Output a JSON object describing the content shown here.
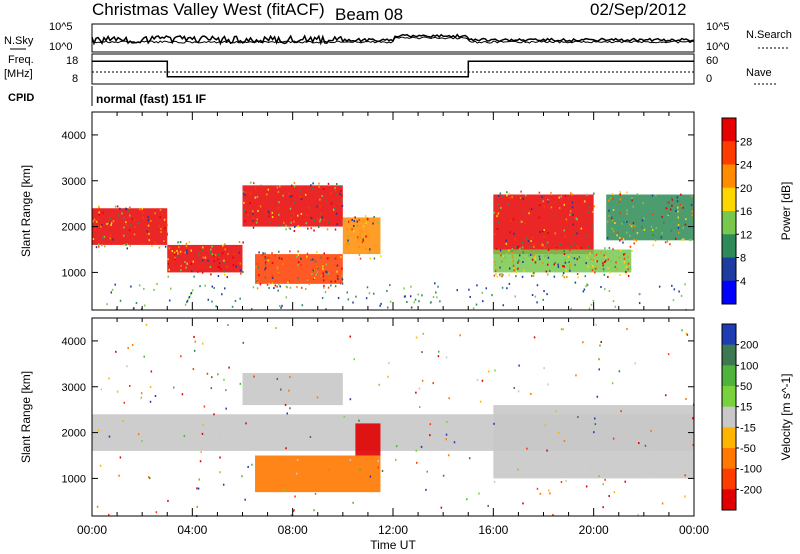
{
  "header": {
    "station": "Christmas Valley West (fitACF)",
    "beam": "Beam 08",
    "date": "02/Sep/2012"
  },
  "noise_panel": {
    "left_label": "N.Sky",
    "right_label": "N.Search",
    "tick_top": "10^5",
    "tick_bottom": "10^0"
  },
  "freq_panel": {
    "left_label_1": "Freq.",
    "left_label_2": "[MHz]",
    "right_label": "Nave",
    "left_ticks": [
      "18",
      "8"
    ],
    "right_ticks": [
      "60",
      "0"
    ],
    "freq_segments": [
      {
        "from": 0,
        "to": 3.0,
        "value": 16
      },
      {
        "from": 3.0,
        "to": 15.0,
        "value": 10
      },
      {
        "from": 15.0,
        "to": 24.0,
        "value": 16
      }
    ]
  },
  "cpid": {
    "label": "CPID",
    "text": "normal (fast) 151 IF"
  },
  "power_panel": {
    "ylabel": "Slant Range [km]",
    "colorbar_label": "Power [dB]",
    "colorbar_ticks": [
      "28",
      "24",
      "20",
      "16",
      "12",
      "8",
      "4"
    ],
    "colorbar_colors": [
      "#e60000",
      "#ff3c00",
      "#ff8c00",
      "#ffd700",
      "#78c850",
      "#2e8b57",
      "#1e3ca0",
      "#0000ff"
    ]
  },
  "velocity_panel": {
    "ylabel": "Slant Range [km]",
    "colorbar_label": "Velocity [m s^-1]",
    "colorbar_ticks": [
      "200",
      "100",
      "50",
      "15",
      "-15",
      "-50",
      "-100",
      "-200"
    ],
    "colorbar_colors": [
      "#1e3cb4",
      "#3c7850",
      "#50b43c",
      "#78d23c",
      "#c8c8c8",
      "#ffb400",
      "#ff7800",
      "#ff3c00",
      "#e00000"
    ]
  },
  "xaxis": {
    "label": "Time UT",
    "ticks": [
      "00:00",
      "04:00",
      "08:00",
      "12:00",
      "16:00",
      "20:00",
      "00:00"
    ]
  },
  "chart_data": {
    "type": "heatmap",
    "x_range_hours": [
      0,
      24
    ],
    "y_range_km": [
      180,
      4500
    ],
    "y_ticks": [
      1000,
      2000,
      3000,
      4000
    ],
    "power_echo_bands": [
      {
        "t0": 0.0,
        "t1": 3.0,
        "r0": 1600,
        "r1": 2400,
        "level": 28
      },
      {
        "t0": 3.0,
        "t1": 6.0,
        "r0": 1000,
        "r1": 1600,
        "level": 28
      },
      {
        "t0": 6.0,
        "t1": 10.0,
        "r0": 2000,
        "r1": 2900,
        "level": 26
      },
      {
        "t0": 6.5,
        "t1": 10.0,
        "r0": 750,
        "r1": 1400,
        "level": 22
      },
      {
        "t0": 10.0,
        "t1": 11.5,
        "r0": 1400,
        "r1": 2200,
        "level": 20
      },
      {
        "t0": 16.0,
        "t1": 20.0,
        "r0": 1400,
        "r1": 2700,
        "level": 28
      },
      {
        "t0": 16.0,
        "t1": 21.5,
        "r0": 1000,
        "r1": 1500,
        "level": 12
      },
      {
        "t0": 20.5,
        "t1": 24.0,
        "r0": 1700,
        "r1": 2700,
        "level": 10
      }
    ],
    "velocity_echo_bands": [
      {
        "t0": 0.0,
        "t1": 24.0,
        "r0": 1600,
        "r1": 2400,
        "velocity": 0
      },
      {
        "t0": 6.5,
        "t1": 11.5,
        "r0": 700,
        "r1": 1500,
        "velocity": -100
      },
      {
        "t0": 10.5,
        "t1": 11.5,
        "r0": 1500,
        "r1": 2200,
        "velocity": -200
      },
      {
        "t0": 6.0,
        "t1": 10.0,
        "r0": 2600,
        "r1": 3300,
        "velocity": 0
      },
      {
        "t0": 16.0,
        "t1": 24.0,
        "r0": 1000,
        "r1": 2600,
        "velocity": 0
      }
    ]
  }
}
